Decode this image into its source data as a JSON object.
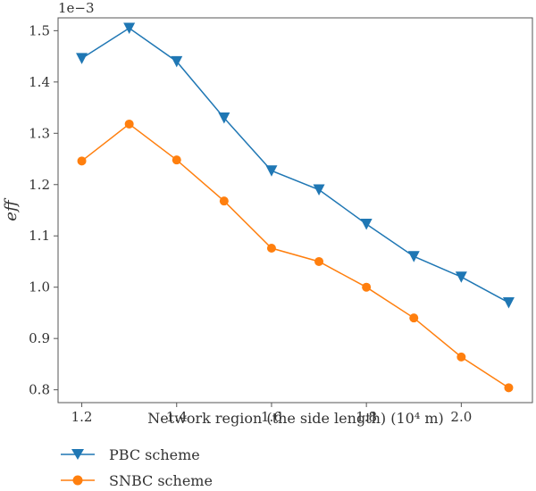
{
  "chart_data": {
    "type": "line",
    "title": "",
    "xlabel": "Network region (the side length) (10⁴ m)",
    "ylabel": "eff",
    "y_offset_label": "1e−3",
    "xlim": [
      1.15,
      2.15
    ],
    "ylim": [
      0.775,
      1.525
    ],
    "x_ticks": [
      1.2,
      1.4,
      1.6,
      1.8,
      2.0
    ],
    "x_tick_labels": [
      "1.2",
      "1.4",
      "1.6",
      "1.8",
      "2.0"
    ],
    "y_ticks": [
      0.8,
      0.9,
      1.0,
      1.1,
      1.2,
      1.3,
      1.4,
      1.5
    ],
    "y_tick_labels": [
      "0.8",
      "0.9",
      "1.0",
      "1.1",
      "1.2",
      "1.3",
      "1.4",
      "1.5"
    ],
    "grid": false,
    "legend_position": "below",
    "x": [
      1.2,
      1.3,
      1.4,
      1.5,
      1.6,
      1.7,
      1.8,
      1.9,
      2.0,
      2.1
    ],
    "series": [
      {
        "name": "PBC scheme",
        "color": "#1f77b4",
        "marker": "triangle-down",
        "values": [
          1.446,
          1.505,
          1.44,
          1.33,
          1.227,
          1.19,
          1.123,
          1.06,
          1.02,
          0.97
        ]
      },
      {
        "name": "SNBC scheme",
        "color": "#ff7f0e",
        "marker": "circle",
        "values": [
          1.246,
          1.318,
          1.248,
          1.168,
          1.076,
          1.05,
          1.0,
          0.94,
          0.864,
          0.804
        ]
      }
    ]
  }
}
